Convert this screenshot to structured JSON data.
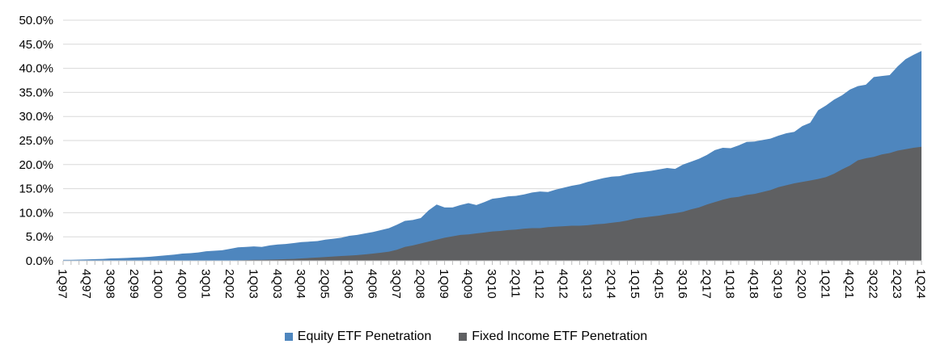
{
  "colors": {
    "background": "#FFFFFF",
    "gridline": "#D9D9D9",
    "axis_line": "#D9D9D9",
    "tick": "#BFBFBF",
    "text": "#000000",
    "equity_blue": "#4E86BE",
    "fixed_income_gray": "#5F6062"
  },
  "chart_data": {
    "type": "area",
    "title": "",
    "xlabel": "",
    "ylabel": "",
    "ylim": [
      0,
      50
    ],
    "y_tick_step": 5,
    "y_tick_labels": [
      "0.0%",
      "5.0%",
      "10.0%",
      "15.0%",
      "20.0%",
      "25.0%",
      "30.0%",
      "35.0%",
      "40.0%",
      "45.0%",
      "50.0%"
    ],
    "grid": "horizontal",
    "legend_position": "bottom",
    "overlay_note": "Series are overlapping (not stacked); Fixed Income is drawn in front of Equity.",
    "x_tick_every": 3,
    "x_tick_labels": [
      "1Q97",
      "4Q97",
      "3Q98",
      "2Q99",
      "1Q00",
      "4Q00",
      "3Q01",
      "2Q02",
      "1Q03",
      "4Q03",
      "3Q04",
      "2Q05",
      "1Q06",
      "4Q06",
      "3Q07",
      "2Q08",
      "1Q09",
      "4Q09",
      "3Q10",
      "2Q11",
      "1Q12",
      "4Q12",
      "3Q13",
      "2Q14",
      "1Q15",
      "4Q15",
      "3Q16",
      "2Q17",
      "1Q18",
      "4Q18",
      "3Q19",
      "2Q20",
      "1Q21",
      "4Q21",
      "3Q22",
      "2Q23",
      "1Q24"
    ],
    "x": [
      "1Q97",
      "2Q97",
      "3Q97",
      "4Q97",
      "1Q98",
      "2Q98",
      "3Q98",
      "4Q98",
      "1Q99",
      "2Q99",
      "3Q99",
      "4Q99",
      "1Q00",
      "2Q00",
      "3Q00",
      "4Q00",
      "1Q01",
      "2Q01",
      "3Q01",
      "4Q01",
      "1Q02",
      "2Q02",
      "3Q02",
      "4Q02",
      "1Q03",
      "2Q03",
      "3Q03",
      "4Q03",
      "1Q04",
      "2Q04",
      "3Q04",
      "4Q04",
      "1Q05",
      "2Q05",
      "3Q05",
      "4Q05",
      "1Q06",
      "2Q06",
      "3Q06",
      "4Q06",
      "1Q07",
      "2Q07",
      "3Q07",
      "4Q07",
      "1Q08",
      "2Q08",
      "3Q08",
      "4Q08",
      "1Q09",
      "2Q09",
      "3Q09",
      "4Q09",
      "1Q10",
      "2Q10",
      "3Q10",
      "4Q10",
      "1Q11",
      "2Q11",
      "3Q11",
      "4Q11",
      "1Q12",
      "2Q12",
      "3Q12",
      "4Q12",
      "1Q13",
      "2Q13",
      "3Q13",
      "4Q13",
      "1Q14",
      "2Q14",
      "3Q14",
      "4Q14",
      "1Q15",
      "2Q15",
      "3Q15",
      "4Q15",
      "1Q16",
      "2Q16",
      "3Q16",
      "4Q16",
      "1Q17",
      "2Q17",
      "3Q17",
      "4Q17",
      "1Q18",
      "2Q18",
      "3Q18",
      "4Q18",
      "1Q19",
      "2Q19",
      "3Q19",
      "4Q19",
      "1Q20",
      "2Q20",
      "3Q20",
      "4Q20",
      "1Q21",
      "2Q21",
      "3Q21",
      "4Q21",
      "1Q22",
      "2Q22",
      "3Q22",
      "4Q22",
      "1Q23",
      "2Q23",
      "3Q23",
      "4Q23",
      "1Q24"
    ],
    "series": [
      {
        "name": "Equity ETF Penetration",
        "color": "#4E86BE",
        "values": [
          0.2,
          0.22,
          0.25,
          0.3,
          0.35,
          0.4,
          0.5,
          0.55,
          0.6,
          0.7,
          0.75,
          0.85,
          1.0,
          1.15,
          1.3,
          1.5,
          1.6,
          1.75,
          2.0,
          2.1,
          2.2,
          2.5,
          2.8,
          2.9,
          3.0,
          2.9,
          3.2,
          3.4,
          3.5,
          3.7,
          3.9,
          4.0,
          4.1,
          4.4,
          4.6,
          4.8,
          5.2,
          5.4,
          5.7,
          6.0,
          6.4,
          6.8,
          7.5,
          8.3,
          8.5,
          8.9,
          10.5,
          11.7,
          11.1,
          11.1,
          11.6,
          12.0,
          11.6,
          12.2,
          12.9,
          13.1,
          13.4,
          13.5,
          13.8,
          14.2,
          14.4,
          14.3,
          14.8,
          15.2,
          15.6,
          15.9,
          16.4,
          16.8,
          17.2,
          17.5,
          17.6,
          18.0,
          18.3,
          18.5,
          18.7,
          19.0,
          19.3,
          19.1,
          20.0,
          20.6,
          21.2,
          22.0,
          23.0,
          23.5,
          23.4,
          24.0,
          24.7,
          24.8,
          25.1,
          25.4,
          26.0,
          26.5,
          26.8,
          28.0,
          28.7,
          31.3,
          32.3,
          33.5,
          34.4,
          35.6,
          36.3,
          36.6,
          38.2,
          38.4,
          38.6,
          40.4,
          41.9,
          42.8,
          43.6
        ]
      },
      {
        "name": "Fixed Income ETF Penetration",
        "color": "#5F6062",
        "values": [
          0,
          0,
          0,
          0,
          0,
          0,
          0,
          0,
          0,
          0,
          0,
          0,
          0,
          0,
          0,
          0,
          0,
          0,
          0,
          0,
          0,
          0.05,
          0.1,
          0.15,
          0.2,
          0.2,
          0.25,
          0.3,
          0.35,
          0.4,
          0.5,
          0.6,
          0.7,
          0.8,
          0.9,
          1.0,
          1.1,
          1.2,
          1.35,
          1.5,
          1.7,
          1.9,
          2.3,
          2.9,
          3.2,
          3.6,
          4.0,
          4.4,
          4.8,
          5.1,
          5.4,
          5.5,
          5.7,
          5.9,
          6.1,
          6.2,
          6.4,
          6.5,
          6.7,
          6.8,
          6.8,
          7.0,
          7.1,
          7.2,
          7.3,
          7.3,
          7.4,
          7.6,
          7.7,
          7.9,
          8.1,
          8.4,
          8.8,
          9.0,
          9.2,
          9.4,
          9.7,
          9.9,
          10.2,
          10.7,
          11.1,
          11.7,
          12.2,
          12.7,
          13.1,
          13.3,
          13.7,
          13.9,
          14.3,
          14.7,
          15.3,
          15.7,
          16.1,
          16.4,
          16.7,
          17.0,
          17.4,
          18.1,
          19.0,
          19.8,
          20.9,
          21.3,
          21.6,
          22.1,
          22.4,
          22.9,
          23.2,
          23.5,
          23.7
        ]
      }
    ]
  },
  "legend": {
    "equity_label": "Equity ETF Penetration",
    "fixed_income_label": "Fixed Income ETF Penetration"
  }
}
